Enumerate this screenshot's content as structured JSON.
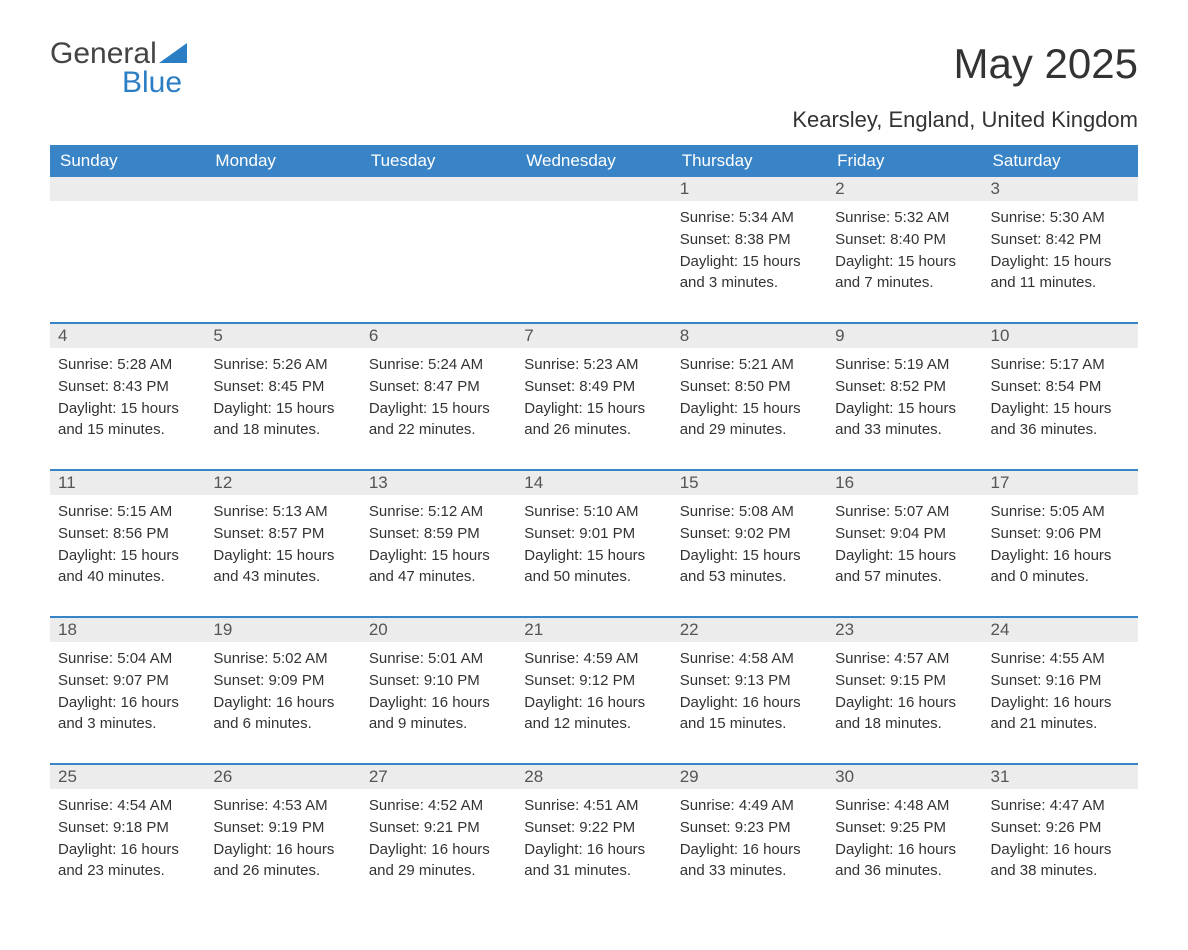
{
  "logo": {
    "top": "General",
    "bottom": "Blue"
  },
  "title": "May 2025",
  "subtitle": "Kearsley, England, United Kingdom",
  "dayNames": [
    "Sunday",
    "Monday",
    "Tuesday",
    "Wednesday",
    "Thursday",
    "Friday",
    "Saturday"
  ],
  "labels": {
    "sunrise": "Sunrise: ",
    "sunset": "Sunset: ",
    "daylight": "Daylight: "
  },
  "colors": {
    "header_bg": "#3984c6",
    "header_text": "#ffffff",
    "daynum_bg": "#ececec",
    "daynum_text": "#555555",
    "row_border": "#3984c6",
    "logo_blue": "#2c7ec4",
    "body_text": "#333333",
    "page_bg": "#ffffff"
  },
  "weeks": [
    [
      {
        "empty": true
      },
      {
        "empty": true
      },
      {
        "empty": true
      },
      {
        "empty": true
      },
      {
        "n": "1",
        "sunrise": "5:34 AM",
        "sunset": "8:38 PM",
        "daylight": "15 hours and 3 minutes."
      },
      {
        "n": "2",
        "sunrise": "5:32 AM",
        "sunset": "8:40 PM",
        "daylight": "15 hours and 7 minutes."
      },
      {
        "n": "3",
        "sunrise": "5:30 AM",
        "sunset": "8:42 PM",
        "daylight": "15 hours and 11 minutes."
      }
    ],
    [
      {
        "n": "4",
        "sunrise": "5:28 AM",
        "sunset": "8:43 PM",
        "daylight": "15 hours and 15 minutes."
      },
      {
        "n": "5",
        "sunrise": "5:26 AM",
        "sunset": "8:45 PM",
        "daylight": "15 hours and 18 minutes."
      },
      {
        "n": "6",
        "sunrise": "5:24 AM",
        "sunset": "8:47 PM",
        "daylight": "15 hours and 22 minutes."
      },
      {
        "n": "7",
        "sunrise": "5:23 AM",
        "sunset": "8:49 PM",
        "daylight": "15 hours and 26 minutes."
      },
      {
        "n": "8",
        "sunrise": "5:21 AM",
        "sunset": "8:50 PM",
        "daylight": "15 hours and 29 minutes."
      },
      {
        "n": "9",
        "sunrise": "5:19 AM",
        "sunset": "8:52 PM",
        "daylight": "15 hours and 33 minutes."
      },
      {
        "n": "10",
        "sunrise": "5:17 AM",
        "sunset": "8:54 PM",
        "daylight": "15 hours and 36 minutes."
      }
    ],
    [
      {
        "n": "11",
        "sunrise": "5:15 AM",
        "sunset": "8:56 PM",
        "daylight": "15 hours and 40 minutes."
      },
      {
        "n": "12",
        "sunrise": "5:13 AM",
        "sunset": "8:57 PM",
        "daylight": "15 hours and 43 minutes."
      },
      {
        "n": "13",
        "sunrise": "5:12 AM",
        "sunset": "8:59 PM",
        "daylight": "15 hours and 47 minutes."
      },
      {
        "n": "14",
        "sunrise": "5:10 AM",
        "sunset": "9:01 PM",
        "daylight": "15 hours and 50 minutes."
      },
      {
        "n": "15",
        "sunrise": "5:08 AM",
        "sunset": "9:02 PM",
        "daylight": "15 hours and 53 minutes."
      },
      {
        "n": "16",
        "sunrise": "5:07 AM",
        "sunset": "9:04 PM",
        "daylight": "15 hours and 57 minutes."
      },
      {
        "n": "17",
        "sunrise": "5:05 AM",
        "sunset": "9:06 PM",
        "daylight": "16 hours and 0 minutes."
      }
    ],
    [
      {
        "n": "18",
        "sunrise": "5:04 AM",
        "sunset": "9:07 PM",
        "daylight": "16 hours and 3 minutes."
      },
      {
        "n": "19",
        "sunrise": "5:02 AM",
        "sunset": "9:09 PM",
        "daylight": "16 hours and 6 minutes."
      },
      {
        "n": "20",
        "sunrise": "5:01 AM",
        "sunset": "9:10 PM",
        "daylight": "16 hours and 9 minutes."
      },
      {
        "n": "21",
        "sunrise": "4:59 AM",
        "sunset": "9:12 PM",
        "daylight": "16 hours and 12 minutes."
      },
      {
        "n": "22",
        "sunrise": "4:58 AM",
        "sunset": "9:13 PM",
        "daylight": "16 hours and 15 minutes."
      },
      {
        "n": "23",
        "sunrise": "4:57 AM",
        "sunset": "9:15 PM",
        "daylight": "16 hours and 18 minutes."
      },
      {
        "n": "24",
        "sunrise": "4:55 AM",
        "sunset": "9:16 PM",
        "daylight": "16 hours and 21 minutes."
      }
    ],
    [
      {
        "n": "25",
        "sunrise": "4:54 AM",
        "sunset": "9:18 PM",
        "daylight": "16 hours and 23 minutes."
      },
      {
        "n": "26",
        "sunrise": "4:53 AM",
        "sunset": "9:19 PM",
        "daylight": "16 hours and 26 minutes."
      },
      {
        "n": "27",
        "sunrise": "4:52 AM",
        "sunset": "9:21 PM",
        "daylight": "16 hours and 29 minutes."
      },
      {
        "n": "28",
        "sunrise": "4:51 AM",
        "sunset": "9:22 PM",
        "daylight": "16 hours and 31 minutes."
      },
      {
        "n": "29",
        "sunrise": "4:49 AM",
        "sunset": "9:23 PM",
        "daylight": "16 hours and 33 minutes."
      },
      {
        "n": "30",
        "sunrise": "4:48 AM",
        "sunset": "9:25 PM",
        "daylight": "16 hours and 36 minutes."
      },
      {
        "n": "31",
        "sunrise": "4:47 AM",
        "sunset": "9:26 PM",
        "daylight": "16 hours and 38 minutes."
      }
    ]
  ]
}
